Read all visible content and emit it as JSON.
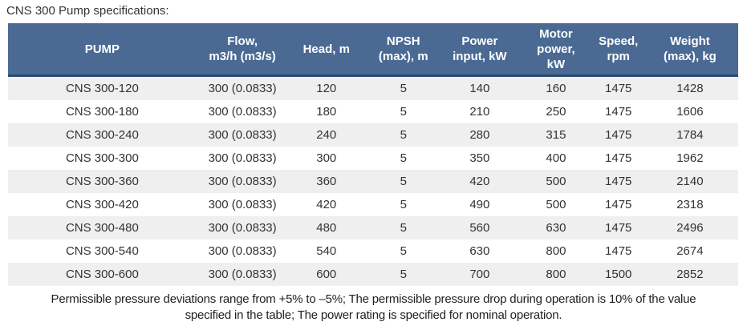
{
  "page": {
    "title": "CNS 300 Pump specifications:"
  },
  "table": {
    "headers": [
      "PUMP",
      "Flow,\nm3/h (m3/s)",
      "Head, m",
      "NPSH\n(max), m",
      "Power\ninput, kW",
      "Motor\npower,\nkW",
      "Speed,\nrpm",
      "Weight\n(max), kg"
    ],
    "rows": [
      [
        "CNS 300-120",
        "300 (0.0833)",
        "120",
        "5",
        "140",
        "160",
        "1475",
        "1428"
      ],
      [
        "CNS 300-180",
        "300 (0.0833)",
        "180",
        "5",
        "210",
        "250",
        "1475",
        "1606"
      ],
      [
        "CNS 300-240",
        "300 (0.0833)",
        "240",
        "5",
        "280",
        "315",
        "1475",
        "1784"
      ],
      [
        "CNS 300-300",
        "300 (0.0833)",
        "300",
        "5",
        "350",
        "400",
        "1475",
        "1962"
      ],
      [
        "CNS 300-360",
        "300 (0.0833)",
        "360",
        "5",
        "420",
        "500",
        "1475",
        "2140"
      ],
      [
        "CNS 300-420",
        "300 (0.0833)",
        "420",
        "5",
        "490",
        "500",
        "1475",
        "2318"
      ],
      [
        "CNS 300-480",
        "300 (0.0833)",
        "480",
        "5",
        "560",
        "630",
        "1475",
        "2496"
      ],
      [
        "CNS 300-540",
        "300 (0.0833)",
        "540",
        "5",
        "630",
        "800",
        "1475",
        "2674"
      ],
      [
        "CNS 300-600",
        "300 (0.0833)",
        "600",
        "5",
        "700",
        "800",
        "1500",
        "2852"
      ]
    ]
  },
  "footer": {
    "note": "Permissible pressure deviations range from +5% to –5%; The permissible pressure drop during operation is 10% of the value\nspecified in the table; The power rating is specified for nominal operation."
  },
  "colors": {
    "header_bg": "#4a6a94",
    "header_border": "#2d4a6e",
    "row_alt_bg": "#efefef",
    "body_text": "#333333"
  }
}
